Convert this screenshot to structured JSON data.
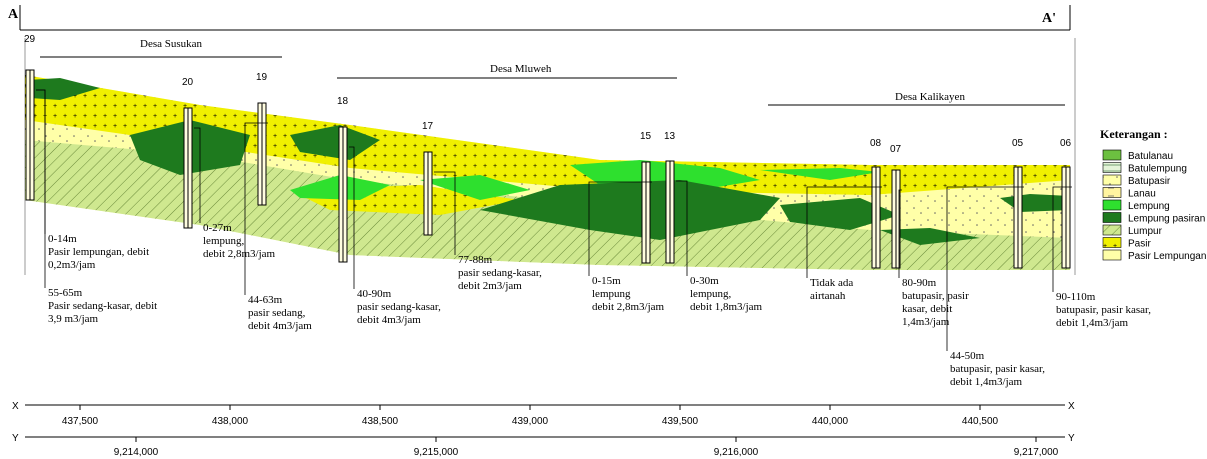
{
  "header": {
    "left": "A",
    "right": "A'"
  },
  "villages": [
    "Desa Susukan",
    "Desa Mluweh",
    "Desa Kalikayen"
  ],
  "wells": [
    "29",
    "20",
    "19",
    "18",
    "17",
    "15",
    "13",
    "08",
    "07",
    "05",
    "06"
  ],
  "annotations": [
    {
      "lines": [
        "0-14m",
        "Pasir lempungan, debit",
        "0,2m3/jam"
      ]
    },
    {
      "lines": [
        "55-65m",
        "Pasir sedang-kasar, debit",
        "3,9 m3/jam"
      ]
    },
    {
      "lines": [
        "0-27m",
        "lempung,",
        "debit 2,8m3/jam"
      ]
    },
    {
      "lines": [
        "44-63m",
        "pasir sedang,",
        "debit 4m3/jam"
      ]
    },
    {
      "lines": [
        "40-90m",
        "pasir sedang-kasar,",
        "debit 4m3/jam"
      ]
    },
    {
      "lines": [
        "77-88m",
        "pasir sedang-kasar,",
        "debit 2m3/jam"
      ]
    },
    {
      "lines": [
        "0-15m",
        "lempung",
        "debit 2,8m3/jam"
      ]
    },
    {
      "lines": [
        "0-30m",
        "lempung,",
        "debit 1,8m3/jam"
      ]
    },
    {
      "lines": [
        "Tidak ada",
        "airtanah"
      ]
    },
    {
      "lines": [
        "80-90m",
        "batupasir, pasir",
        "kasar, debit",
        "1,4m3/jam"
      ]
    },
    {
      "lines": [
        "44-50m",
        "batupasir, pasir kasar,",
        "debit 1,4m3/jam"
      ]
    },
    {
      "lines": [
        "90-110m",
        "batupasir, pasir kasar,",
        "debit 1,4m3/jam"
      ]
    }
  ],
  "legend": {
    "title": "Keterangan :",
    "items": [
      "Batulanau",
      "Batulempung",
      "Batupasir",
      "Lanau",
      "Lempung",
      "Lempung pasiran",
      "Lumpur",
      "Pasir",
      "Pasir Lempungan"
    ]
  },
  "x_axis": {
    "label": "X",
    "ticks": [
      "437,500",
      "438,000",
      "438,500",
      "439,000",
      "439,500",
      "440,000",
      "440,500"
    ]
  },
  "y_axis": {
    "label": "Y",
    "ticks": [
      "9,214,000",
      "9,215,000",
      "9,216,000",
      "9,217,000"
    ]
  }
}
